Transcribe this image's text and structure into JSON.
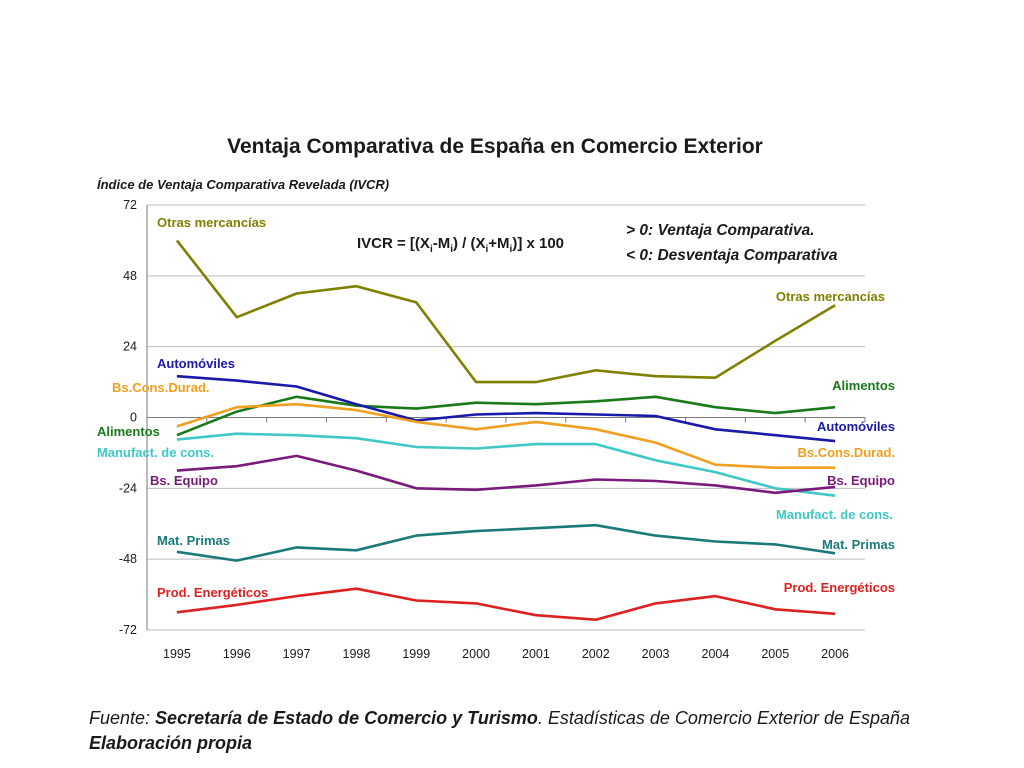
{
  "chart_data": {
    "type": "line",
    "title": "Ventaja Comparativa de España en Comercio Exterior",
    "ylabel": "Índice de Ventaja Comparativa Revelada (IVCR)",
    "ylim": [
      -72,
      72
    ],
    "yticks": [
      -72,
      -48,
      -24,
      0,
      24,
      48,
      72
    ],
    "x": [
      "1995",
      "1996",
      "1997",
      "1998",
      "1999",
      "2000",
      "2001",
      "2002",
      "2003",
      "2004",
      "2005",
      "2006"
    ],
    "grid": true,
    "legend": "inline-labels",
    "formula": {
      "prefix": "IVCR = [(X",
      "sub1": "i",
      "mid1": "-M",
      "sub2": "i",
      "mid2": ") / (X",
      "sub3": "i",
      "mid3": "+M",
      "sub4": "i",
      "suffix": ")] x 100"
    },
    "notes": [
      "> 0: Ventaja Comparativa.",
      "< 0: Desventaja Comparativa"
    ],
    "series": [
      {
        "name": "Otras mercancías",
        "color": "#808000",
        "values": [
          60,
          34,
          42,
          44.5,
          39,
          12,
          12,
          16,
          14,
          13.5,
          26,
          38
        ]
      },
      {
        "name": "Alimentos",
        "color": "#1a7a1a",
        "values": [
          -6,
          2,
          7,
          4,
          3,
          5,
          4.5,
          5.5,
          7,
          3.5,
          1.5,
          3.5
        ]
      },
      {
        "name": "Automóviles",
        "color": "#1a1aaa",
        "values": [
          14,
          12.5,
          10.5,
          4.5,
          -1,
          1,
          1.5,
          1,
          0.5,
          -4,
          -6,
          -8
        ]
      },
      {
        "name": "Bs.Cons.Durad.",
        "color": "#f0a020",
        "values": [
          -3,
          3.5,
          4.5,
          2.5,
          -1.5,
          -4,
          -1.5,
          -4,
          -8.5,
          -16,
          -17,
          -17
        ]
      },
      {
        "name": "Manufact. de cons.",
        "color": "#40c8c8",
        "values": [
          -7.5,
          -5.5,
          -6,
          -7,
          -10,
          -10.5,
          -9,
          -9,
          -14.5,
          -18.5,
          -24,
          -26.5
        ]
      },
      {
        "name": "Bs. Equipo",
        "color": "#7a1a7a",
        "values": [
          -18,
          -16.5,
          -13,
          -18,
          -24,
          -24.5,
          -23,
          -21,
          -21.5,
          -23,
          -25.5,
          -23.5
        ]
      },
      {
        "name": "Mat. Primas",
        "color": "#1a7a7a",
        "values": [
          -45.5,
          -48.5,
          -44,
          -45,
          -40,
          -38.5,
          -37.5,
          -36.5,
          -40,
          -42,
          -43,
          -46
        ]
      },
      {
        "name": "Prod. Energéticos",
        "color": "#dd2020",
        "values": [
          -66,
          -63.5,
          -60.5,
          -58,
          -62,
          -63,
          -67,
          -68.5,
          -63,
          -60.5,
          -65,
          -66.5
        ]
      }
    ],
    "labels": [
      {
        "text": "Otras mercancías",
        "color": "#808000"
      },
      {
        "text": "Otras mercancías",
        "color": "#808000"
      },
      {
        "text": "Automóviles",
        "color": "#1a1aaa"
      },
      {
        "text": "Bs.Cons.Durad.",
        "color": "#f0a020"
      },
      {
        "text": "Alimentos",
        "color": "#1a7a1a"
      },
      {
        "text": "Alimentos",
        "color": "#1a7a1a"
      },
      {
        "text": "Automóviles",
        "color": "#1a1aaa"
      },
      {
        "text": "Manufact. de cons.",
        "color": "#40c8c8"
      },
      {
        "text": "Bs.Cons.Durad.",
        "color": "#f0a020"
      },
      {
        "text": "Bs. Equipo",
        "color": "#7a1a7a"
      },
      {
        "text": "Bs. Equipo",
        "color": "#7a1a7a"
      },
      {
        "text": "Manufact. de cons.",
        "color": "#40c8c8"
      },
      {
        "text": "Mat. Primas",
        "color": "#1a7a7a"
      },
      {
        "text": "Mat. Primas",
        "color": "#1a7a7a"
      },
      {
        "text": "Prod. Energéticos",
        "color": "#dd2020"
      },
      {
        "text": "Prod. Energéticos",
        "color": "#dd2020"
      }
    ]
  },
  "source": {
    "prefix": "Fuente: ",
    "org": "Secretaría de Estado de Comercio y Turismo",
    "middle": ". Estadísticas de Comercio Exterior de España",
    "line2": "Elaboración propia"
  }
}
